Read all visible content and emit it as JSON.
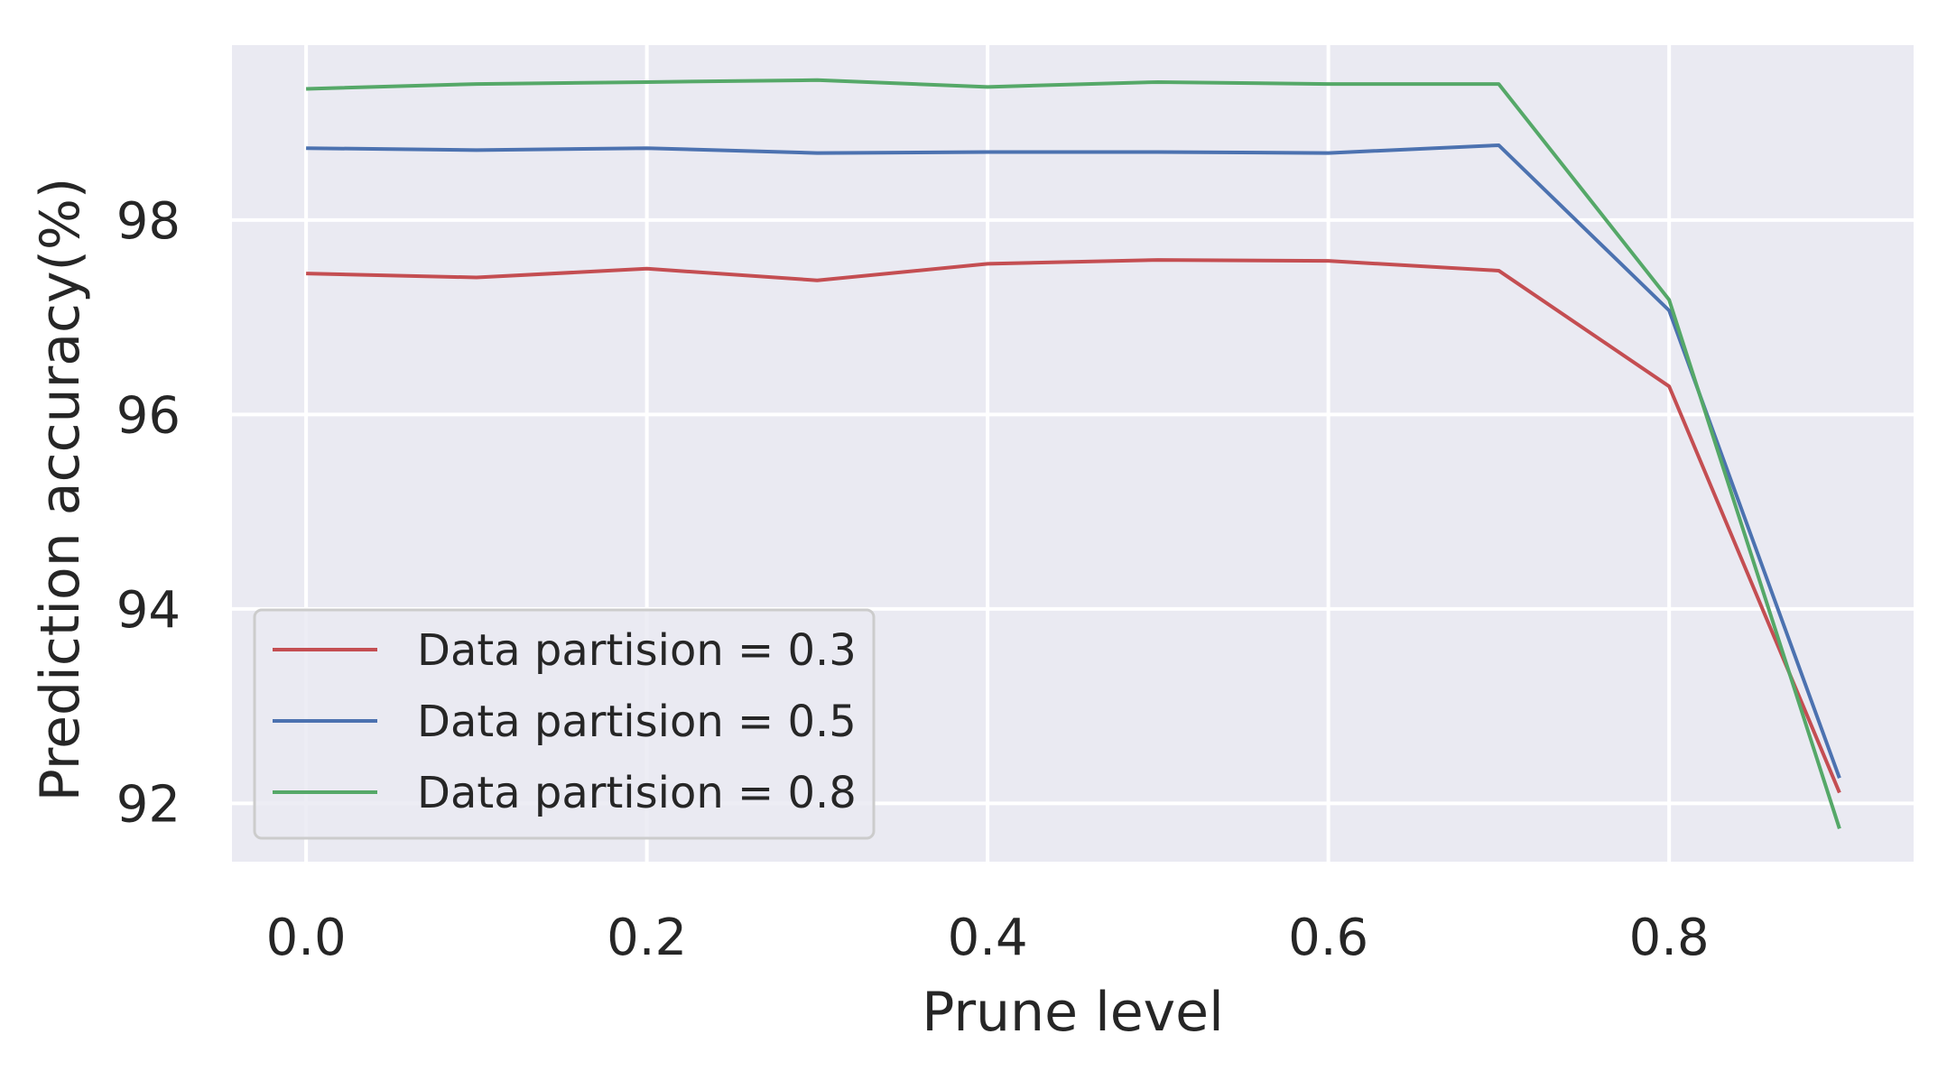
{
  "chart_data": {
    "type": "line",
    "title": "",
    "xlabel": "Prune level",
    "ylabel": "Prediction accuracy(%)",
    "xlim": [
      -0.0435,
      0.9435
    ],
    "ylim": [
      91.4,
      99.8
    ],
    "xticks": [
      0.0,
      0.2,
      0.4,
      0.6,
      0.8
    ],
    "xtick_labels": [
      "0.0",
      "0.2",
      "0.4",
      "0.6",
      "0.8"
    ],
    "yticks": [
      92,
      94,
      96,
      98
    ],
    "ytick_labels": [
      "92",
      "94",
      "96",
      "98"
    ],
    "grid": true,
    "background": "#eaeaf2",
    "legend_position": "lower-left",
    "x": [
      0.0,
      0.1,
      0.2,
      0.3,
      0.4,
      0.5,
      0.6,
      0.7,
      0.8,
      0.9
    ],
    "series": [
      {
        "name": "Data partision = 0.3",
        "color": "#c44e52",
        "values": [
          97.45,
          97.41,
          97.5,
          97.38,
          97.55,
          97.59,
          97.58,
          97.48,
          96.29,
          92.11
        ]
      },
      {
        "name": "Data partision = 0.5",
        "color": "#4c72b0",
        "values": [
          98.74,
          98.72,
          98.74,
          98.69,
          98.7,
          98.7,
          98.69,
          98.77,
          97.07,
          92.26
        ]
      },
      {
        "name": "Data partision = 0.8",
        "color": "#55a868",
        "values": [
          99.35,
          99.4,
          99.42,
          99.44,
          99.37,
          99.42,
          99.4,
          99.4,
          97.18,
          91.74
        ]
      }
    ]
  }
}
